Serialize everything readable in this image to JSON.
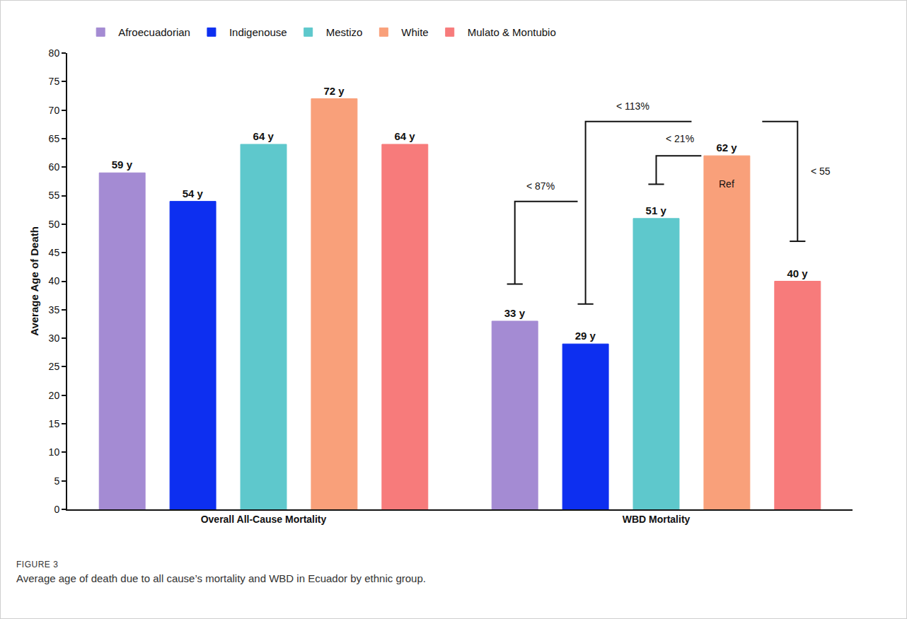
{
  "chart_data": {
    "type": "bar",
    "figure_label": "FIGURE 3",
    "caption": "Average age of death due to all cause’s mortality and WBD in Ecuador by ethnic group.",
    "y_label": "Average Age of Death",
    "categories": [
      "Overall All-Cause Mortality",
      "WBD Mortality"
    ],
    "series": [
      {
        "name": "Afroecuadorian",
        "color": "#a48bd3",
        "values": [
          59,
          33
        ],
        "value_labels": [
          "59 y",
          "33 y"
        ]
      },
      {
        "name": "Indigenouse",
        "color": "#0d2ff0",
        "values": [
          54,
          29
        ],
        "value_labels": [
          "54 y",
          "29 y"
        ]
      },
      {
        "name": "Mestizo",
        "color": "#5ec8cc",
        "values": [
          64,
          51
        ],
        "value_labels": [
          "64 y",
          "51 y"
        ]
      },
      {
        "name": "White",
        "color": "#f9a07a",
        "values": [
          72,
          62
        ],
        "value_labels": [
          "72 y",
          "62 y"
        ]
      },
      {
        "name": "Mulato & Montubio",
        "color": "#f77b7b",
        "values": [
          64,
          40
        ],
        "value_labels": [
          "64 y",
          "40 y"
        ]
      }
    ],
    "ylim": [
      0,
      80
    ],
    "yticks": [
      0,
      5,
      10,
      15,
      20,
      25,
      30,
      35,
      40,
      45,
      50,
      55,
      60,
      65,
      70,
      75,
      80
    ],
    "grid": false,
    "legend": "top",
    "data_labels": true,
    "annotations": [
      {
        "text": "< 87%"
      },
      {
        "text": "< 113%"
      },
      {
        "text": "< 21%"
      },
      {
        "text": "< 55"
      },
      {
        "text": "Ref"
      }
    ]
  }
}
